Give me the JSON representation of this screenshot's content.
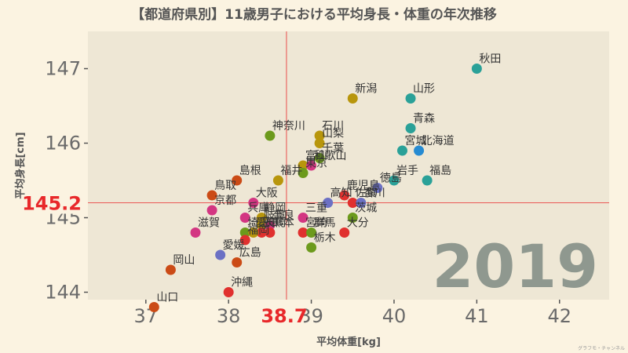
{
  "chart_data": {
    "type": "scatter",
    "title": "【都道府県別】11歳男子における平均身長・体重の年次推移",
    "xlabel": "平均体重[kg]",
    "ylabel": "平均身長[cm]",
    "year_label": "2019",
    "credit": "グラフモ・チャンネル",
    "xlim": [
      36.3,
      42.6
    ],
    "ylim": [
      143.9,
      147.5
    ],
    "xticks": [
      37,
      38,
      39,
      40,
      41,
      42
    ],
    "yticks": [
      144,
      145,
      146,
      147
    ],
    "reference": {
      "x": 38.7,
      "y": 145.2,
      "x_label": "38.7",
      "y_label": "145.2",
      "color": "#e8282a"
    },
    "grid": false,
    "points": [
      {
        "name": "秋田",
        "x": 41.0,
        "y": 147.0,
        "color": "#2aa198"
      },
      {
        "name": "新潟",
        "x": 39.5,
        "y": 146.6,
        "color": "#b8960c"
      },
      {
        "name": "山形",
        "x": 40.2,
        "y": 146.6,
        "color": "#2aa198"
      },
      {
        "name": "青森",
        "x": 40.2,
        "y": 146.2,
        "color": "#2aa198"
      },
      {
        "name": "神奈川",
        "x": 38.5,
        "y": 146.1,
        "color": "#6c9a1c"
      },
      {
        "name": "石川",
        "x": 39.1,
        "y": 146.1,
        "color": "#b8960c"
      },
      {
        "name": "山梨",
        "x": 39.1,
        "y": 146.0,
        "color": "#b8960c"
      },
      {
        "name": "宮城",
        "x": 40.1,
        "y": 145.9,
        "color": "#2aa198"
      },
      {
        "name": "北海道",
        "x": 40.3,
        "y": 145.9,
        "color": "#268bd2"
      },
      {
        "name": "千葉",
        "x": 39.1,
        "y": 145.8,
        "color": "#6c9a1c"
      },
      {
        "name": "富山",
        "x": 38.9,
        "y": 145.7,
        "color": "#b8960c"
      },
      {
        "name": "和歌山",
        "x": 39.0,
        "y": 145.7,
        "color": "#d33682"
      },
      {
        "name": "東京",
        "x": 38.9,
        "y": 145.6,
        "color": "#6c9a1c"
      },
      {
        "name": "島根",
        "x": 38.1,
        "y": 145.5,
        "color": "#cb4b16"
      },
      {
        "name": "福井",
        "x": 38.6,
        "y": 145.5,
        "color": "#b8960c"
      },
      {
        "name": "岩手",
        "x": 40.0,
        "y": 145.5,
        "color": "#2aa198"
      },
      {
        "name": "福島",
        "x": 40.4,
        "y": 145.5,
        "color": "#2aa198"
      },
      {
        "name": "徳島",
        "x": 39.8,
        "y": 145.4,
        "color": "#6c71c4"
      },
      {
        "name": "鳥取",
        "x": 37.8,
        "y": 145.3,
        "color": "#cb4b16"
      },
      {
        "name": "大阪",
        "x": 38.3,
        "y": 145.2,
        "color": "#d33682"
      },
      {
        "name": "高知",
        "x": 39.2,
        "y": 145.2,
        "color": "#6c71c4"
      },
      {
        "name": "鹿児島",
        "x": 39.4,
        "y": 145.3,
        "color": "#e0302e"
      },
      {
        "name": "佐賀",
        "x": 39.5,
        "y": 145.2,
        "color": "#e0302e"
      },
      {
        "name": "香川",
        "x": 39.6,
        "y": 145.2,
        "color": "#6c71c4"
      },
      {
        "name": "京都",
        "x": 37.8,
        "y": 145.1,
        "color": "#d33682"
      },
      {
        "name": "兵庫",
        "x": 38.2,
        "y": 145.0,
        "color": "#d33682"
      },
      {
        "name": "静岡",
        "x": 38.4,
        "y": 145.0,
        "color": "#b8960c"
      },
      {
        "name": "三重",
        "x": 38.9,
        "y": 145.0,
        "color": "#d33682"
      },
      {
        "name": "茨城",
        "x": 39.5,
        "y": 145.0,
        "color": "#6c9a1c"
      },
      {
        "name": "岐阜",
        "x": 38.4,
        "y": 144.9,
        "color": "#b8960c"
      },
      {
        "name": "奈良",
        "x": 38.5,
        "y": 144.9,
        "color": "#d33682"
      },
      {
        "name": "滋賀",
        "x": 37.6,
        "y": 144.8,
        "color": "#d33682"
      },
      {
        "name": "埼玉",
        "x": 38.2,
        "y": 144.8,
        "color": "#6c9a1c"
      },
      {
        "name": "長崎",
        "x": 38.4,
        "y": 144.8,
        "color": "#e0302e"
      },
      {
        "name": "熊本",
        "x": 38.5,
        "y": 144.8,
        "color": "#e0302e"
      },
      {
        "name": "宮崎",
        "x": 38.9,
        "y": 144.8,
        "color": "#e0302e"
      },
      {
        "name": "群馬",
        "x": 39.0,
        "y": 144.8,
        "color": "#6c9a1c"
      },
      {
        "name": "大分",
        "x": 39.4,
        "y": 144.8,
        "color": "#e0302e"
      },
      {
        "name": "愛知",
        "x": 38.3,
        "y": 144.8,
        "color": "#b8960c"
      },
      {
        "name": "福岡",
        "x": 38.2,
        "y": 144.7,
        "color": "#e0302e"
      },
      {
        "name": "栃木",
        "x": 39.0,
        "y": 144.6,
        "color": "#6c9a1c"
      },
      {
        "name": "愛媛",
        "x": 37.9,
        "y": 144.5,
        "color": "#6c71c4"
      },
      {
        "name": "広島",
        "x": 38.1,
        "y": 144.4,
        "color": "#cb4b16"
      },
      {
        "name": "岡山",
        "x": 37.3,
        "y": 144.3,
        "color": "#cb4b16"
      },
      {
        "name": "沖縄",
        "x": 38.0,
        "y": 144.0,
        "color": "#e0302e"
      },
      {
        "name": "山口",
        "x": 37.1,
        "y": 143.8,
        "color": "#cb4b16"
      }
    ]
  }
}
